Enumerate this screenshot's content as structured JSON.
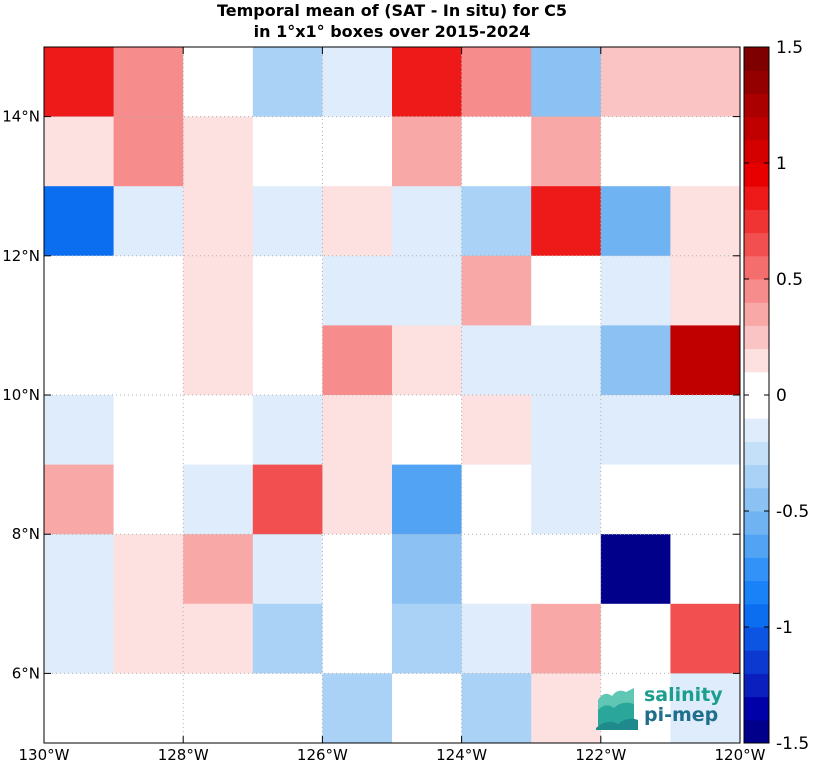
{
  "chart_data": {
    "type": "heatmap",
    "title": "Temporal mean of (SAT - In situ) for C5",
    "subtitle": "in 1°x1° boxes over 2015-2024",
    "x_ticks": [
      "130°W",
      "128°W",
      "126°W",
      "124°W",
      "122°W",
      "120°W"
    ],
    "y_ticks": [
      "14°N",
      "12°N",
      "10°N",
      "8°N",
      "6°N"
    ],
    "xlim": [
      -130,
      -120
    ],
    "ylim": [
      5,
      15
    ],
    "rows_lat_top_to_bottom": [
      15,
      14,
      13,
      12,
      11,
      10,
      9,
      8,
      7,
      6
    ],
    "columns_lon_left_to_right": [
      -130,
      -129,
      -128,
      -127,
      -126,
      -125,
      -124,
      -123,
      -122,
      -121
    ],
    "grid": true,
    "values": [
      [
        0.9,
        0.4,
        0.0,
        -0.3,
        -0.1,
        0.9,
        0.4,
        -0.5,
        0.2,
        0.2
      ],
      [
        0.1,
        0.4,
        0.1,
        0.0,
        0.0,
        0.3,
        0.0,
        0.3,
        0.0,
        0.0
      ],
      [
        -1.0,
        -0.2,
        0.1,
        -0.2,
        0.1,
        -0.1,
        -0.3,
        0.9,
        -0.6,
        0.1
      ],
      [
        0.0,
        0.0,
        0.1,
        0.0,
        -0.2,
        -0.1,
        0.3,
        0.0,
        -0.1,
        0.1
      ],
      [
        0.0,
        0.0,
        0.1,
        0.0,
        0.4,
        0.1,
        -0.1,
        -0.2,
        -0.5,
        1.1
      ],
      [
        -0.1,
        0.0,
        0.0,
        -0.1,
        0.1,
        0.0,
        0.1,
        -0.1,
        -0.2,
        -0.1
      ],
      [
        0.3,
        0.0,
        -0.1,
        0.6,
        0.1,
        -0.7,
        0.0,
        -0.1,
        0.0,
        0.0
      ],
      [
        -0.1,
        0.1,
        0.3,
        -0.1,
        0.0,
        -0.5,
        0.0,
        0.0,
        -1.5,
        0.0
      ],
      [
        -0.2,
        0.1,
        0.1,
        -0.3,
        0.0,
        -0.3,
        -0.2,
        0.3,
        0.0,
        0.6
      ],
      [
        0.0,
        0.0,
        0.0,
        0.0,
        -0.3,
        0.0,
        -0.3,
        0.1,
        0.0,
        -0.1
      ]
    ],
    "colorbar": {
      "range": [
        -1.5,
        1.5
      ],
      "ticks": [
        "-1.5",
        "-1",
        "-0.5",
        "0",
        "0.5",
        "1",
        "1.5"
      ],
      "colors": [
        "#00008b",
        "#0000a8",
        "#0a1fbe",
        "#0c3ad0",
        "#0b55e2",
        "#0b6ef0",
        "#1a82f8",
        "#3392f7",
        "#52a3f3",
        "#70b3f2",
        "#8cc2f3",
        "#a9d2f6",
        "#c4e0f8",
        "#deecfb",
        "#ffffff",
        "#ffffff",
        "#fde0e0",
        "#fbc4c4",
        "#f9a8a8",
        "#f78c8c",
        "#f56e6e",
        "#f25050",
        "#f03434",
        "#ee1a1a",
        "#e80000",
        "#d40000",
        "#c00000",
        "#aa0000",
        "#940000",
        "#7e0000"
      ]
    }
  },
  "logo": {
    "line1": "salinity",
    "line2": "pi-mep"
  }
}
